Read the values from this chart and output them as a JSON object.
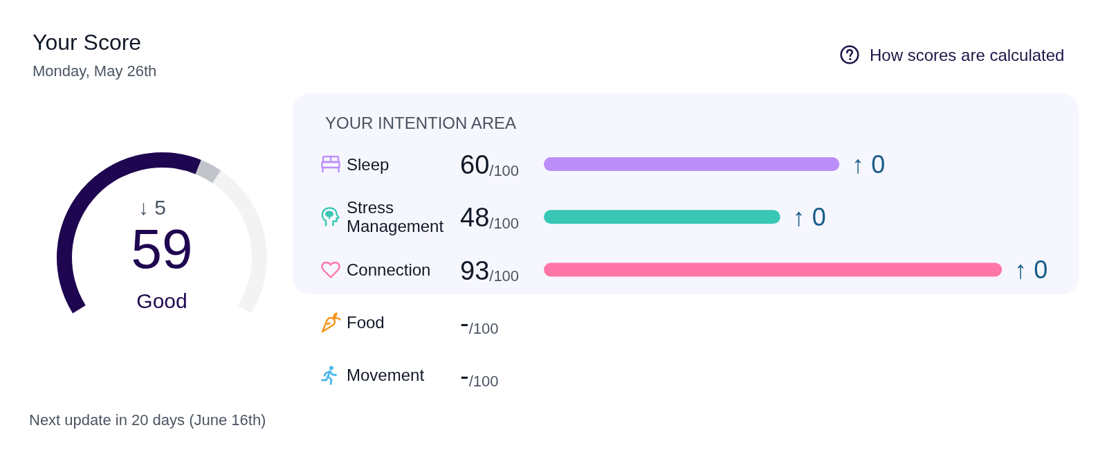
{
  "chart_data": [
    {
      "type": "donut",
      "title": "Your Score",
      "subtitle": "Monday, May 26th",
      "categories": [
        null,
        null,
        null
      ],
      "values": [
        59,
        5,
        36
      ],
      "colors": [
        "#1f0650",
        "#c1c4c9",
        "#f3f3f4"
      ],
      "annotations": [
        "↓ 5",
        "59",
        "Good",
        "Next update in 20 days (June 16th)"
      ]
    },
    {
      "type": "bar",
      "orientation": "horizontal",
      "title": "YOUR INTENTION AREA",
      "categories": [
        "Sleep",
        "Stress Management",
        "Connection",
        "Food",
        "Movement"
      ],
      "values": [
        60,
        48,
        93,
        null,
        null
      ],
      "colors": [
        "#bb8ef9",
        "#38c6b5",
        "#ff75a6",
        null,
        null
      ],
      "value_labels": [
        "60/100",
        "48/100",
        "93/100",
        "-/100",
        "-/100"
      ],
      "tick_labels": "y",
      "annotations": [
        {
          "text": "↑ 0",
          "x": 60,
          "y": "Sleep"
        },
        {
          "text": "↑ 0",
          "x": 48,
          "y": "Stress Management"
        },
        {
          "text": "↑ 0",
          "x": 93,
          "y": "Connection"
        },
        "How scores are calculated"
      ]
    }
  ]
}
